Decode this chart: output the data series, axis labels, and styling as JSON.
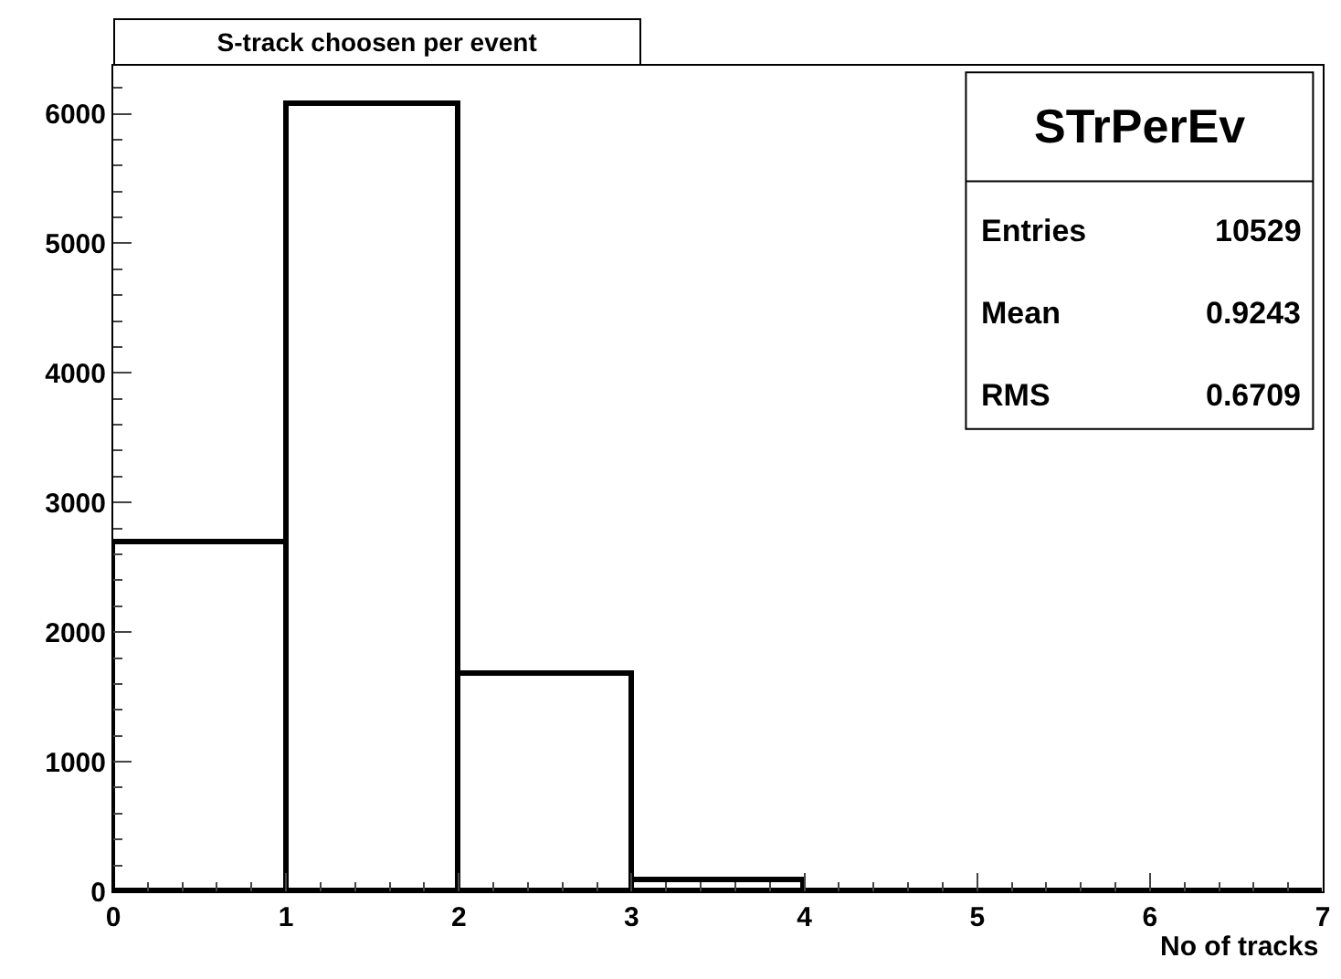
{
  "chart_data": {
    "type": "histogram",
    "title": "S-track choosen per event",
    "xlabel": "No of tracks",
    "bins": [
      0,
      1,
      2,
      3,
      4,
      5,
      6,
      7
    ],
    "values": [
      2690,
      6070,
      1680,
      80,
      0,
      0,
      0
    ],
    "color": "#000000",
    "xlim": [
      0,
      7
    ],
    "xticks": [
      0,
      1,
      2,
      3,
      4,
      5,
      6,
      7
    ],
    "ylim": [
      0,
      6370
    ],
    "yticks": [
      0,
      1000,
      2000,
      3000,
      4000,
      5000,
      6000
    ],
    "annotations": [
      "STrPerEv",
      "Entries",
      "10529",
      "Mean",
      "0.9243",
      "RMS",
      "0.6709"
    ]
  }
}
